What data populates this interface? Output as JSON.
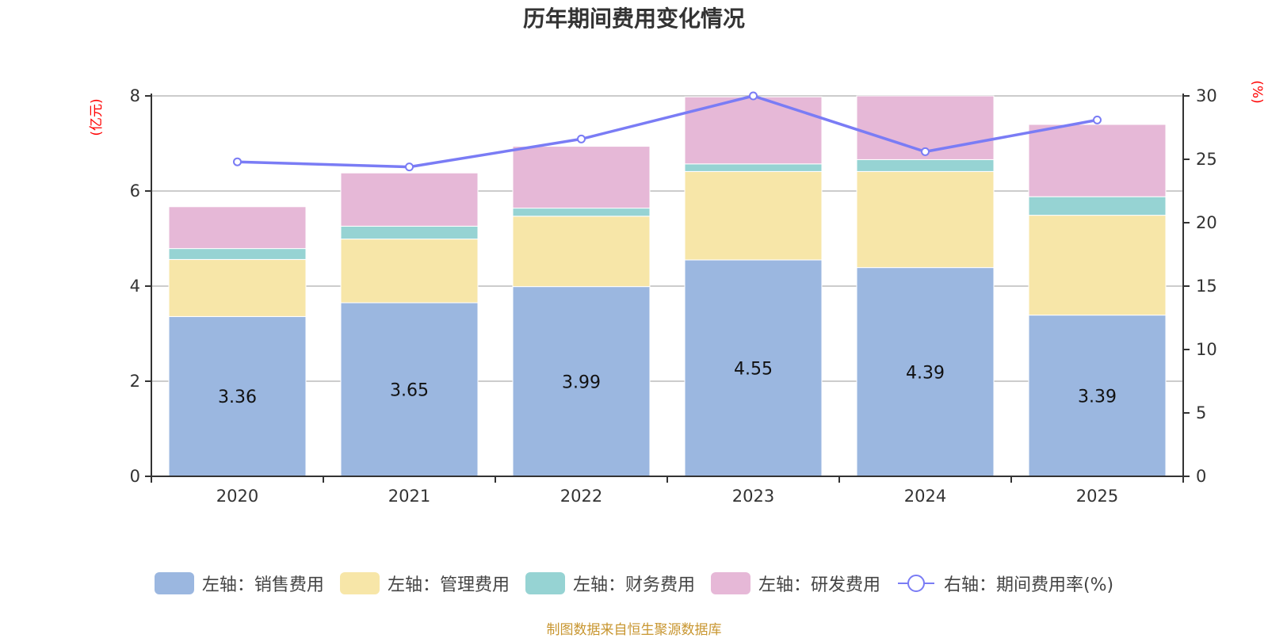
{
  "title": "历年期间费用变化情况",
  "footer": "制图数据来自恒生聚源数据库",
  "colors": {
    "sales": "#9bb7e0",
    "management": "#f7e6a8",
    "finance": "#96d3d3",
    "rnd": "#e6b8d7",
    "rate": "#7a7cf5",
    "unit_text": "#ff0000"
  },
  "legend": [
    {
      "key": "sales",
      "label": "左轴：销售费用",
      "kind": "bar"
    },
    {
      "key": "management",
      "label": "左轴：管理费用",
      "kind": "bar"
    },
    {
      "key": "finance",
      "label": "左轴：财务费用",
      "kind": "bar"
    },
    {
      "key": "rnd",
      "label": "左轴：研发费用",
      "kind": "bar"
    },
    {
      "key": "rate",
      "label": "右轴：期间费用率(%)",
      "kind": "line"
    }
  ],
  "chart_data": {
    "type": "bar",
    "stacked": true,
    "title": "历年期间费用变化情况",
    "categories": [
      "2020",
      "2021",
      "2022",
      "2023",
      "2024",
      "2025"
    ],
    "series": [
      {
        "name": "左轴：销售费用",
        "key": "sales",
        "axis": "left",
        "type": "bar",
        "values": [
          3.36,
          3.65,
          3.99,
          4.55,
          4.39,
          3.39
        ],
        "labels_shown": true
      },
      {
        "name": "左轴：管理费用",
        "key": "management",
        "axis": "left",
        "type": "bar",
        "values": [
          1.2,
          1.34,
          1.48,
          1.86,
          2.02,
          2.1
        ]
      },
      {
        "name": "左轴：财务费用",
        "key": "finance",
        "axis": "left",
        "type": "bar",
        "values": [
          0.23,
          0.27,
          0.17,
          0.16,
          0.25,
          0.39
        ]
      },
      {
        "name": "左轴：研发费用",
        "key": "rnd",
        "axis": "left",
        "type": "bar",
        "values": [
          0.88,
          1.12,
          1.3,
          1.41,
          1.34,
          1.52
        ]
      },
      {
        "name": "右轴：期间费用率(%)",
        "key": "rate",
        "axis": "right",
        "type": "line",
        "values": [
          24.8,
          24.4,
          26.6,
          30.0,
          25.6,
          28.1
        ]
      }
    ],
    "left_axis": {
      "label": "(亿元)",
      "min": 0,
      "max": 8,
      "ticks": [
        0,
        2,
        4,
        6,
        8
      ]
    },
    "right_axis": {
      "label": "(%)",
      "min": 0,
      "max": 30,
      "ticks": [
        0,
        5,
        10,
        15,
        20,
        25,
        30
      ]
    },
    "grid": true,
    "legend_position": "bottom"
  }
}
